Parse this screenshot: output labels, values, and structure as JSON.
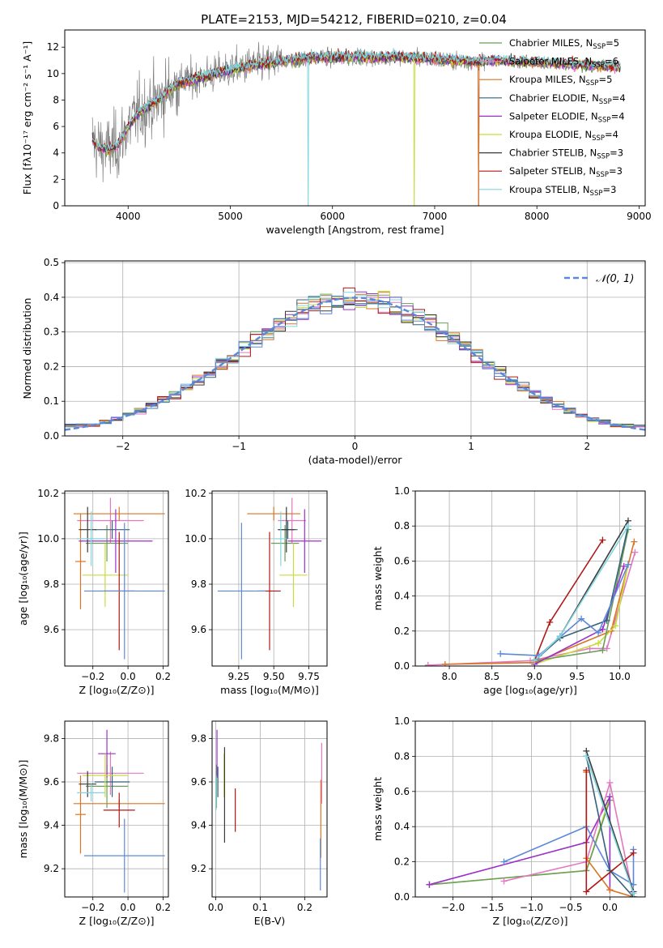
{
  "figure_title": "PLATE=2153, MJD=54212, FIBERID=0210, z=0.04",
  "colors": {
    "chabrier_miles": "#6a9e5a",
    "salpeter_miles": "#e377c2",
    "kroupa_miles": "#d97524",
    "chabrier_elodie": "#34617a",
    "salpeter_elodie": "#9b30c8",
    "kroupa_elodie": "#c8dc3c",
    "chabrier_stelib": "#3a3a3a",
    "salpeter_stelib": "#b01818",
    "kroupa_stelib": "#80d6e0",
    "gauss": "#5b88d8",
    "observed": "#808080"
  },
  "chart_data": [
    {
      "id": "spectrum",
      "type": "line",
      "title": "PLATE=2153, MJD=54212, FIBERID=0210, z=0.04",
      "xlabel": "wavelength [Angstrom, rest frame]",
      "ylabel": "Flux [fλ10⁻¹⁷ erg cm⁻² s⁻¹ A⁻¹]",
      "xlim": [
        3380,
        9060
      ],
      "ylim": [
        0,
        13.3
      ],
      "xticks": [
        4000,
        5000,
        6000,
        7000,
        8000,
        9000
      ],
      "yticks": [
        0,
        2,
        4,
        6,
        8,
        10,
        12
      ],
      "legend_position": "upper-right",
      "legend": [
        {
          "label": "Chabrier MILES, N",
          "sub": "SSP",
          "tail": "=5",
          "color": "#6a9e5a"
        },
        {
          "label": "Salpeter MILES, N",
          "sub": "SSP",
          "tail": "=6",
          "color": "#e377c2"
        },
        {
          "label": "Kroupa MILES, N",
          "sub": "SSP",
          "tail": "=5",
          "color": "#d97524"
        },
        {
          "label": "Chabrier ELODIE, N",
          "sub": "SSP",
          "tail": "=4",
          "color": "#34617a"
        },
        {
          "label": "Salpeter ELODIE, N",
          "sub": "SSP",
          "tail": "=4",
          "color": "#9b30c8"
        },
        {
          "label": "Kroupa ELODIE, N",
          "sub": "SSP",
          "tail": "=4",
          "color": "#c8dc3c"
        },
        {
          "label": "Chabrier STELIB, N",
          "sub": "SSP",
          "tail": "=3",
          "color": "#3a3a3a"
        },
        {
          "label": "Salpeter STELIB, N",
          "sub": "SSP",
          "tail": "=3",
          "color": "#b01818"
        },
        {
          "label": "Kroupa STELIB, N",
          "sub": "SSP",
          "tail": "=3",
          "color": "#80d6e0"
        }
      ],
      "continuum": {
        "wavelength": [
          3650,
          3700,
          3800,
          3900,
          4000,
          4100,
          4200,
          4300,
          4400,
          4500,
          4600,
          4800,
          5000,
          5200,
          5400,
          5600,
          5800,
          6000,
          6200,
          6400,
          6600,
          6800,
          7000,
          7200,
          7400,
          7600,
          7800,
          8000,
          8200,
          8400,
          8600,
          8800
        ],
        "flux": [
          5.0,
          4.5,
          4.2,
          4.6,
          6.0,
          7.0,
          7.6,
          8.0,
          8.8,
          9.3,
          9.5,
          9.9,
          10.3,
          10.6,
          10.8,
          11.0,
          11.2,
          11.2,
          11.3,
          11.2,
          11.3,
          11.2,
          11.1,
          11.0,
          10.9,
          11.0,
          10.9,
          10.9,
          10.8,
          10.7,
          10.6,
          10.5
        ]
      },
      "model_start": 3650,
      "model_end": 8820,
      "observed_end": 7500,
      "model_dropouts": [
        {
          "model": "Chabrier MILES",
          "wavelength": 7430
        },
        {
          "model": "Salpeter MILES",
          "wavelength": 7430
        },
        {
          "model": "Kroupa MILES",
          "wavelength": 7430
        },
        {
          "model": "Kroupa ELODIE",
          "wavelength": 6800
        },
        {
          "model": "Kroupa STELIB",
          "wavelength": 5760
        }
      ]
    },
    {
      "id": "residuals",
      "type": "line",
      "xlabel": "(data-model)/error",
      "ylabel": "Normed distribution",
      "xlim": [
        -2.5,
        2.5
      ],
      "ylim": [
        0,
        0.505
      ],
      "xticks": [
        -2,
        -1,
        0,
        1,
        2
      ],
      "yticks": [
        0.0,
        0.1,
        0.2,
        0.3,
        0.4,
        0.5
      ],
      "grid": true,
      "legend_position": "upper-right",
      "legend": [
        {
          "label": "𝒩(0, 1)",
          "color": "#5b88d8",
          "dash": true
        }
      ],
      "bin_width": 0.1
    },
    {
      "id": "age_vs_Z",
      "type": "errorbar",
      "xlabel": "Z [log₁₀(Z/Z⊙)]",
      "ylabel": "age  [log₁₀(age/yr)]",
      "xlim": [
        -0.36,
        0.23
      ],
      "ylim": [
        9.44,
        10.21
      ],
      "xticks": [
        -0.2,
        0.0,
        0.2
      ],
      "yticks": [
        9.6,
        9.8,
        10.0,
        10.2
      ],
      "points": [
        {
          "model": "Chabrier MILES",
          "x": -0.12,
          "xerr": 0.12,
          "y": 9.98,
          "yerr": 0.08,
          "color": "#6a9e5a"
        },
        {
          "model": "Salpeter MILES",
          "x": -0.1,
          "xerr": 0.19,
          "y": 10.08,
          "yerr": 0.1,
          "color": "#e377c2"
        },
        {
          "model": "Kroupa MILES",
          "x": -0.27,
          "xerr": 0.03,
          "y": 9.9,
          "yerr": 0.21,
          "color": "#d97524"
        },
        {
          "model": "Kroupa MILES",
          "x": -0.05,
          "xerr": 0.26,
          "y": 10.11,
          "yerr": 0.03,
          "color": "#d97524"
        },
        {
          "model": "Chabrier ELODIE",
          "x": -0.09,
          "xerr": 0.1,
          "y": 10.04,
          "yerr": 0.04,
          "color": "#34617a"
        },
        {
          "model": "Salpeter ELODIE",
          "x": -0.07,
          "xerr": 0.21,
          "y": 9.99,
          "yerr": 0.14,
          "color": "#9b30c8"
        },
        {
          "model": "Kroupa ELODIE",
          "x": -0.13,
          "xerr": 0.13,
          "y": 9.84,
          "yerr": 0.14,
          "color": "#c8dc3c"
        },
        {
          "model": "Chabrier STELIB",
          "x": -0.23,
          "xerr": 0.05,
          "y": 10.04,
          "yerr": 0.1,
          "color": "#3a3a3a"
        },
        {
          "model": "Salpeter STELIB",
          "x": -0.05,
          "xerr": 0.09,
          "y": 9.77,
          "yerr": 0.26,
          "color": "#b01818"
        },
        {
          "model": "Kroupa STELIB",
          "x": -0.21,
          "xerr": 0.08,
          "y": 10.0,
          "yerr": 0.12,
          "color": "#80d6e0"
        },
        {
          "model": "Kroupa STELIB",
          "x": -0.02,
          "xerr": 0.23,
          "y": 9.77,
          "yerr": 0.3,
          "color": "#5b88d8"
        }
      ]
    },
    {
      "id": "age_vs_mass",
      "type": "errorbar",
      "xlabel": "mass [log₁₀(M/M⊙)]",
      "xlim": [
        9.06,
        9.88
      ],
      "ylim": [
        9.44,
        10.21
      ],
      "xticks": [
        9.25,
        9.5,
        9.75
      ],
      "yticks": [
        9.6,
        9.8,
        10.0,
        10.2
      ],
      "points": [
        {
          "model": "Chabrier MILES",
          "x": 9.58,
          "xerr": 0.1,
          "y": 9.98,
          "yerr": 0.08,
          "color": "#6a9e5a"
        },
        {
          "model": "Salpeter MILES",
          "x": 9.63,
          "xerr": 0.1,
          "y": 10.08,
          "yerr": 0.1,
          "color": "#e377c2"
        },
        {
          "model": "Kroupa MILES",
          "x": 9.5,
          "xerr": 0.19,
          "y": 10.11,
          "yerr": 0.03,
          "color": "#d97524"
        },
        {
          "model": "Chabrier ELODIE",
          "x": 9.6,
          "xerr": 0.07,
          "y": 10.04,
          "yerr": 0.04,
          "color": "#34617a"
        },
        {
          "model": "Salpeter ELODIE",
          "x": 9.72,
          "xerr": 0.12,
          "y": 9.99,
          "yerr": 0.14,
          "color": "#9b30c8"
        },
        {
          "model": "Kroupa ELODIE",
          "x": 9.64,
          "xerr": 0.1,
          "y": 9.84,
          "yerr": 0.14,
          "color": "#c8dc3c"
        },
        {
          "model": "Chabrier STELIB",
          "x": 9.59,
          "xerr": 0.06,
          "y": 10.04,
          "yerr": 0.1,
          "color": "#3a3a3a"
        },
        {
          "model": "Salpeter STELIB",
          "x": 9.47,
          "xerr": 0.08,
          "y": 9.77,
          "yerr": 0.26,
          "color": "#b01818"
        },
        {
          "model": "Kroupa STELIB",
          "x": 9.55,
          "xerr": 0.04,
          "y": 10.0,
          "yerr": 0.12,
          "color": "#80d6e0"
        },
        {
          "model": "Kroupa STELIB",
          "x": 9.27,
          "xerr": 0.17,
          "y": 9.77,
          "yerr": 0.3,
          "color": "#5b88d8"
        }
      ]
    },
    {
      "id": "massweight_vs_age",
      "type": "line",
      "xlabel": "age  [log₁₀(age/yr)]",
      "ylabel": "mass weight",
      "xlim": [
        7.6,
        10.3
      ],
      "ylim": [
        0,
        1.0
      ],
      "xticks": [
        8.0,
        8.5,
        9.0,
        9.5,
        10.0
      ],
      "yticks": [
        0.0,
        0.2,
        0.4,
        0.6,
        0.8,
        1.0
      ],
      "grid": true,
      "series": [
        {
          "model": "Salpeter MILES",
          "color": "#e377c2",
          "x": [
            7.75,
            8.95,
            9.65,
            9.85,
            10.18
          ],
          "y": [
            0.005,
            0.03,
            0.1,
            0.1,
            0.65
          ]
        },
        {
          "model": "Kroupa MILES",
          "color": "#d97524",
          "x": [
            7.95,
            9.0,
            9.9,
            10.17
          ],
          "y": [
            0.01,
            0.02,
            0.2,
            0.71
          ]
        },
        {
          "model": "Kroupa ELODIE",
          "color": "#c8dc3c",
          "x": [
            9.0,
            9.75,
            9.95,
            10.1
          ],
          "y": [
            0.01,
            0.13,
            0.23,
            0.58
          ]
        },
        {
          "model": "Chabrier MILES",
          "color": "#6a9e5a",
          "x": [
            9.0,
            9.8,
            10.1
          ],
          "y": [
            0.03,
            0.09,
            0.78
          ]
        },
        {
          "model": "Salpeter ELODIE",
          "color": "#9b30c8",
          "x": [
            9.0,
            9.8,
            10.05
          ],
          "y": [
            0.01,
            0.21,
            0.57
          ]
        },
        {
          "model": "Chabrier ELODIE",
          "color": "#34617a",
          "x": [
            9.0,
            9.3,
            9.85,
            10.1
          ],
          "y": [
            0.03,
            0.16,
            0.26,
            0.8
          ]
        },
        {
          "model": "Chabrier STELIB",
          "color": "#3a3a3a",
          "x": [
            9.0,
            9.3,
            10.1
          ],
          "y": [
            0.03,
            0.17,
            0.83
          ]
        },
        {
          "model": "Salpeter STELIB",
          "color": "#b01818",
          "x": [
            9.0,
            9.18,
            9.8
          ],
          "y": [
            0.03,
            0.25,
            0.72
          ]
        },
        {
          "model": "Kroupa STELIB",
          "color": "#5b88d8",
          "x": [
            8.6,
            9.05,
            9.55,
            9.75,
            10.1
          ],
          "y": [
            0.07,
            0.06,
            0.27,
            0.19,
            0.58
          ]
        },
        {
          "model": "Kroupa STELIB",
          "color": "#80d6e0",
          "x": [
            9.0,
            9.3,
            10.1
          ],
          "y": [
            0.03,
            0.17,
            0.8
          ]
        }
      ]
    },
    {
      "id": "mass_vs_Z",
      "type": "errorbar",
      "xlabel": "Z [log₁₀(Z/Z⊙)]",
      "ylabel": "mass [log₁₀(M/M⊙)]",
      "xlim": [
        -0.36,
        0.23
      ],
      "ylim": [
        9.07,
        9.88
      ],
      "xticks": [
        -0.2,
        0.0,
        0.2
      ],
      "yticks": [
        9.2,
        9.4,
        9.6,
        9.8
      ],
      "points": [
        {
          "model": "Chabrier MILES",
          "x": -0.12,
          "xerr": 0.12,
          "y": 9.58,
          "yerr": 0.1,
          "color": "#6a9e5a"
        },
        {
          "model": "Salpeter MILES",
          "x": -0.1,
          "xerr": 0.19,
          "y": 9.64,
          "yerr": 0.1,
          "color": "#e377c2"
        },
        {
          "model": "Kroupa MILES",
          "x": -0.27,
          "xerr": 0.03,
          "y": 9.45,
          "yerr": 0.18,
          "color": "#d97524"
        },
        {
          "model": "Kroupa MILES",
          "x": -0.05,
          "xerr": 0.26,
          "y": 9.5,
          "yerr": 0.02,
          "color": "#d97524"
        },
        {
          "model": "Chabrier ELODIE",
          "x": -0.09,
          "xerr": 0.1,
          "y": 9.6,
          "yerr": 0.07,
          "color": "#34617a"
        },
        {
          "model": "Salpeter ELODIE",
          "x": -0.12,
          "xerr": 0.05,
          "y": 9.73,
          "yerr": 0.11,
          "color": "#9b30c8"
        },
        {
          "model": "Kroupa ELODIE",
          "x": -0.13,
          "xerr": 0.13,
          "y": 9.63,
          "yerr": 0.1,
          "color": "#c8dc3c"
        },
        {
          "model": "Chabrier STELIB",
          "x": -0.23,
          "xerr": 0.05,
          "y": 9.59,
          "yerr": 0.06,
          "color": "#3a3a3a"
        },
        {
          "model": "Salpeter STELIB",
          "x": -0.05,
          "xerr": 0.09,
          "y": 9.47,
          "yerr": 0.08,
          "color": "#b01818"
        },
        {
          "model": "Kroupa STELIB",
          "x": -0.21,
          "xerr": 0.08,
          "y": 9.55,
          "yerr": 0.04,
          "color": "#80d6e0"
        },
        {
          "model": "Kroupa STELIB",
          "x": -0.02,
          "xerr": 0.23,
          "y": 9.26,
          "yerr": 0.17,
          "color": "#5b88d8"
        }
      ]
    },
    {
      "id": "mass_vs_ebv",
      "type": "errorbar",
      "xlabel": "E(B-V)",
      "xlim": [
        -0.008,
        0.25
      ],
      "ylim": [
        9.07,
        9.88
      ],
      "xticks": [
        0.0,
        0.1,
        0.2
      ],
      "yticks": [
        9.2,
        9.4,
        9.6,
        9.8
      ],
      "points": [
        {
          "model": "Chabrier MILES",
          "x": 0.002,
          "xerr": 0,
          "y": 9.58,
          "yerr": 0.1,
          "color": "#6a9e5a"
        },
        {
          "model": "Salpeter ELODIE",
          "x": 0.003,
          "xerr": 0,
          "y": 9.73,
          "yerr": 0.11,
          "color": "#9b30c8"
        },
        {
          "model": "Chabrier ELODIE",
          "x": 0.005,
          "xerr": 0,
          "y": 9.6,
          "yerr": 0.07,
          "color": "#34617a"
        },
        {
          "model": "Kroupa STELIB",
          "x": 0.001,
          "xerr": 0,
          "y": 9.55,
          "yerr": 0.08,
          "color": "#80d6e0"
        },
        {
          "model": "Kroupa ELODIE",
          "x": 0.019,
          "xerr": 0,
          "y": 9.63,
          "yerr": 0.1,
          "color": "#c8dc3c"
        },
        {
          "model": "Chabrier STELIB",
          "x": 0.02,
          "xerr": 0,
          "y": 9.54,
          "yerr": 0.22,
          "color": "#3a3a3a"
        },
        {
          "model": "Salpeter STELIB",
          "x": 0.044,
          "xerr": 0,
          "y": 9.47,
          "yerr": 0.1,
          "color": "#b01818"
        },
        {
          "model": "Salpeter MILES",
          "x": 0.238,
          "xerr": 0,
          "y": 9.64,
          "yerr": 0.14,
          "color": "#e377c2"
        },
        {
          "model": "Kroupa MILES",
          "x": 0.236,
          "xerr": 0,
          "y": 9.43,
          "yerr": 0.18,
          "color": "#d97524"
        },
        {
          "model": "Kroupa STELIB",
          "x": 0.235,
          "xerr": 0,
          "y": 9.22,
          "yerr": 0.12,
          "color": "#5b88d8"
        }
      ]
    },
    {
      "id": "massweight_vs_Z",
      "type": "line",
      "xlabel": "Z [log₁₀(Z/Z⊙)]",
      "ylabel": "mass weight",
      "xlim": [
        -2.48,
        0.45
      ],
      "ylim": [
        0,
        1.0
      ],
      "xticks": [
        -2.0,
        -1.5,
        -1.0,
        -0.5,
        0.0
      ],
      "yticks": [
        0.0,
        0.2,
        0.4,
        0.6,
        0.8,
        1.0
      ],
      "grid": true,
      "series": [
        {
          "model": "Kroupa ELODIE",
          "color": "#c8dc3c",
          "x": [
            -2.3,
            -0.3,
            0.0
          ],
          "y": [
            0.07,
            0.15,
            0.57
          ]
        },
        {
          "model": "Chabrier MILES",
          "color": "#6a9e5a",
          "x": [
            -2.3,
            -0.3,
            0.0
          ],
          "y": [
            0.07,
            0.15,
            0.55
          ]
        },
        {
          "model": "Salpeter ELODIE",
          "color": "#9b30c8",
          "x": [
            -2.3,
            -0.3,
            0.0,
            0.0
          ],
          "y": [
            0.07,
            0.31,
            0.57,
            0.04
          ]
        },
        {
          "model": "Salpeter MILES",
          "color": "#e377c2",
          "x": [
            -1.35,
            -0.3,
            0.0,
            0.3
          ],
          "y": [
            0.09,
            0.2,
            0.65,
            0.0
          ]
        },
        {
          "model": "Kroupa MILES",
          "color": "#d97524",
          "x": [
            -0.3,
            -0.3,
            0.0,
            0.3
          ],
          "y": [
            0.71,
            0.22,
            0.04,
            0.0
          ]
        },
        {
          "model": "Kroupa STELIB",
          "color": "#5b88d8",
          "x": [
            -1.35,
            -0.3,
            0.0,
            0.3,
            0.3
          ],
          "y": [
            0.2,
            0.4,
            0.15,
            0.07,
            0.27
          ]
        },
        {
          "model": "Chabrier ELODIE",
          "color": "#34617a",
          "x": [
            -0.3,
            0.0,
            0.3
          ],
          "y": [
            0.8,
            0.15,
            0.0
          ]
        },
        {
          "model": "Chabrier STELIB",
          "color": "#3a3a3a",
          "x": [
            -0.3,
            0.3,
            0.3
          ],
          "y": [
            0.83,
            0.03,
            0.0
          ]
        },
        {
          "model": "Salpeter STELIB",
          "color": "#b01818",
          "x": [
            -0.3,
            -0.3,
            0.3
          ],
          "y": [
            0.72,
            0.03,
            0.25
          ]
        },
        {
          "model": "Kroupa STELIB",
          "color": "#80d6e0",
          "x": [
            -0.3,
            0.3
          ],
          "y": [
            0.8,
            0.02
          ]
        }
      ]
    }
  ]
}
